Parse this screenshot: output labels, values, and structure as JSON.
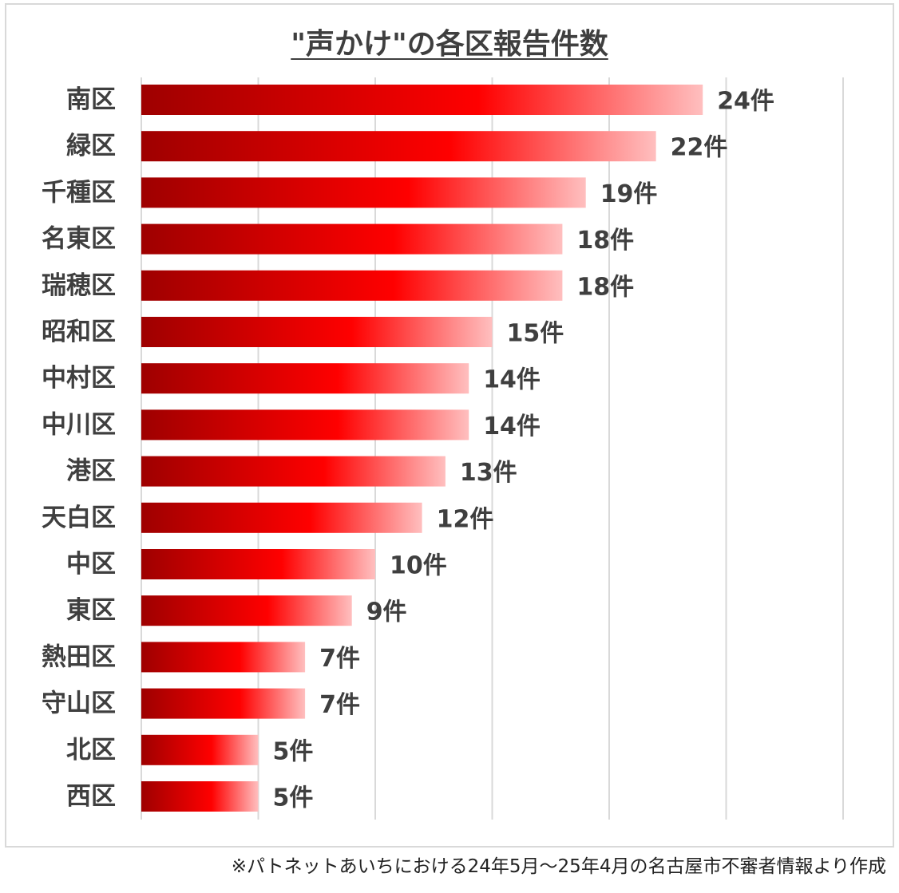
{
  "chart_data": {
    "type": "bar",
    "orientation": "horizontal",
    "title": "\"声かけ\"の各区報告件数",
    "categories": [
      "南区",
      "緑区",
      "千種区",
      "名東区",
      "瑞穂区",
      "昭和区",
      "中村区",
      "中川区",
      "港区",
      "天白区",
      "中区",
      "東区",
      "熱田区",
      "守山区",
      "北区",
      "西区"
    ],
    "values": [
      24,
      22,
      19,
      18,
      18,
      15,
      14,
      14,
      13,
      12,
      10,
      9,
      7,
      7,
      5,
      5
    ],
    "data_labels": [
      "24件",
      "22件",
      "19件",
      "18件",
      "18件",
      "15件",
      "14件",
      "14件",
      "13件",
      "12件",
      "10件",
      "9件",
      "7件",
      "7件",
      "5件",
      "5件"
    ],
    "xlim": [
      0,
      30
    ],
    "grid": true,
    "legend": "none",
    "colors": {
      "bar_gradient_start": "#9e0000",
      "bar_gradient_mid": "#ff0000",
      "bar_gradient_end": "#ffbfbf",
      "gridline": "#d9d9d9",
      "text": "#3f3f3f"
    }
  },
  "footnote": "※パトネットあいちにおける24年5月～25年4月の名古屋市不審者情報より作成"
}
